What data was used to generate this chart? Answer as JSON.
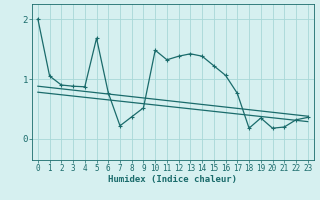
{
  "xlabel": "Humidex (Indice chaleur)",
  "bg_color": "#d6f0f0",
  "grid_color": "#a8d8d8",
  "line_color": "#1a6b6b",
  "xlim": [
    -0.5,
    23.5
  ],
  "ylim": [
    -0.35,
    2.25
  ],
  "yticks": [
    0,
    1,
    2
  ],
  "xticks": [
    0,
    1,
    2,
    3,
    4,
    5,
    6,
    7,
    8,
    9,
    10,
    11,
    12,
    13,
    14,
    15,
    16,
    17,
    18,
    19,
    20,
    21,
    22,
    23
  ],
  "series1_x": [
    0,
    1,
    2,
    3,
    4,
    5,
    6,
    7,
    8,
    9,
    10,
    11,
    12,
    13,
    14,
    15,
    16,
    17,
    18,
    19,
    20,
    21,
    22,
    23
  ],
  "series1_y": [
    2.0,
    1.05,
    0.9,
    0.88,
    0.87,
    1.68,
    0.77,
    0.22,
    0.37,
    0.52,
    1.48,
    1.32,
    1.38,
    1.42,
    1.38,
    1.22,
    1.06,
    0.76,
    0.18,
    0.35,
    0.18,
    0.2,
    0.32,
    0.36
  ],
  "series2_x": [
    0,
    23
  ],
  "series2_y": [
    0.78,
    0.29
  ],
  "series3_x": [
    0,
    23
  ],
  "series3_y": [
    0.88,
    0.38
  ],
  "marker": "+",
  "markersize": 3.5,
  "linewidth": 0.9
}
